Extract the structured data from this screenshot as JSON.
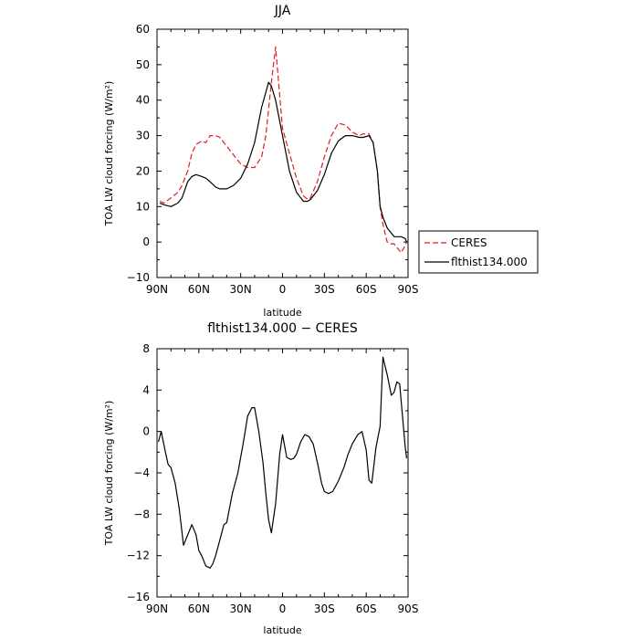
{
  "chart_data": [
    {
      "type": "line",
      "title": "JJA",
      "xlabel": "latitude",
      "ylabel": "TOA LW cloud forcing (W/m²)",
      "xlim": [
        90,
        -90
      ],
      "ylim": [
        -10,
        60
      ],
      "xticks": [
        90,
        60,
        30,
        0,
        -30,
        -60,
        -90
      ],
      "xtick_labels": [
        "90N",
        "60N",
        "30N",
        "0",
        "30S",
        "60S",
        "90S"
      ],
      "yticks": [
        -10,
        0,
        10,
        20,
        30,
        40,
        50,
        60
      ],
      "ytick_labels": [
        "−10",
        "0",
        "10",
        "20",
        "30",
        "40",
        "50",
        "60"
      ],
      "legend_position": "right",
      "series": [
        {
          "name": "CERES",
          "color": "#e41a1c",
          "dash": "dashed",
          "x": [
            88,
            85,
            80,
            75,
            72,
            68,
            65,
            62,
            58,
            55,
            52,
            48,
            45,
            40,
            35,
            30,
            25,
            20,
            15,
            12,
            8,
            5,
            0,
            -5,
            -10,
            -15,
            -18,
            -20,
            -25,
            -30,
            -35,
            -40,
            -45,
            -50,
            -55,
            -58,
            -62,
            -65,
            -68,
            -70,
            -72,
            -75,
            -78,
            -80,
            -82,
            -85,
            -88,
            -89
          ],
          "y": [
            11.5,
            11,
            12.5,
            14,
            16,
            20,
            25,
            27.5,
            28.5,
            28,
            30,
            30,
            29.5,
            27,
            24.5,
            22,
            21,
            21,
            24,
            30,
            45,
            55,
            32,
            25,
            18,
            13,
            12,
            12.5,
            17,
            24,
            30,
            33.5,
            33,
            31,
            30,
            30.5,
            30.5,
            28,
            20,
            10,
            5,
            0,
            -0.5,
            -0.5,
            -1.5,
            -3,
            -1,
            0
          ]
        },
        {
          "name": "flthist134.000",
          "color": "#000000",
          "dash": "solid",
          "x": [
            88,
            85,
            80,
            75,
            72,
            68,
            65,
            62,
            58,
            55,
            52,
            48,
            45,
            40,
            35,
            30,
            25,
            20,
            15,
            10,
            8,
            5,
            0,
            -5,
            -10,
            -15,
            -18,
            -20,
            -25,
            -30,
            -35,
            -40,
            -45,
            -50,
            -55,
            -58,
            -62,
            -65,
            -68,
            -70,
            -72,
            -75,
            -78,
            -80,
            -82,
            -85,
            -88,
            -89
          ],
          "y": [
            11,
            10.5,
            10,
            11,
            12.5,
            17,
            18.5,
            19,
            18.5,
            18,
            17,
            15.5,
            15,
            15,
            16,
            18,
            22,
            28,
            38,
            45,
            44,
            40,
            30,
            20,
            14,
            11.5,
            11.5,
            12,
            14.5,
            19,
            25,
            28.5,
            30,
            30,
            29.5,
            29.5,
            30,
            28,
            20,
            10,
            7,
            4,
            2.5,
            1.5,
            1.5,
            1.5,
            1,
            0
          ]
        }
      ]
    },
    {
      "type": "line",
      "title": "flthist134.000 − CERES",
      "xlabel": "latitude",
      "ylabel": "TOA LW cloud forcing (W/m²)",
      "xlim": [
        90,
        -90
      ],
      "ylim": [
        -16,
        8
      ],
      "xticks": [
        90,
        60,
        30,
        0,
        -30,
        -60,
        -90
      ],
      "xtick_labels": [
        "90N",
        "60N",
        "30N",
        "0",
        "30S",
        "60S",
        "90S"
      ],
      "yticks": [
        -16,
        -12,
        -8,
        -4,
        0,
        4,
        8
      ],
      "ytick_labels": [
        "−16",
        "−12",
        "−8",
        "−4",
        "0",
        "4",
        "8"
      ],
      "series": [
        {
          "color": "#000000",
          "dash": "solid",
          "x": [
            89,
            87,
            84,
            82,
            80,
            77,
            74,
            71,
            68,
            65,
            62,
            60,
            58,
            55,
            52,
            50,
            48,
            45,
            42,
            40,
            36,
            32,
            28,
            25,
            22,
            20,
            17,
            14,
            12,
            10,
            8,
            5,
            2,
            0,
            -3,
            -6,
            -8,
            -10,
            -13,
            -16,
            -19,
            -22,
            -25,
            -28,
            -30,
            -33,
            -36,
            -40,
            -44,
            -47,
            -50,
            -54,
            -57,
            -60,
            -62,
            -64,
            -67,
            -70,
            -72,
            -75,
            -78,
            -80,
            -82,
            -84,
            -86,
            -88,
            -89
          ],
          "y": [
            -1,
            0,
            -2,
            -3.2,
            -3.5,
            -5,
            -7.5,
            -11,
            -10,
            -9,
            -10,
            -11.5,
            -12,
            -13,
            -13.2,
            -12.8,
            -12,
            -10.5,
            -9,
            -8.8,
            -6,
            -4,
            -1,
            1.5,
            2.3,
            2.3,
            0,
            -3,
            -6,
            -8.5,
            -9.8,
            -7,
            -2.2,
            -0.3,
            -2.5,
            -2.7,
            -2.6,
            -2.2,
            -1,
            -0.3,
            -0.5,
            -1.2,
            -3,
            -5,
            -5.8,
            -6,
            -5.8,
            -4.8,
            -3.5,
            -2.2,
            -1.2,
            -0.3,
            0,
            -1.8,
            -4.7,
            -5,
            -1.5,
            0.5,
            7.2,
            5.5,
            3.5,
            3.8,
            4.8,
            4.6,
            1.5,
            -1.5,
            -2.6
          ]
        }
      ]
    }
  ]
}
